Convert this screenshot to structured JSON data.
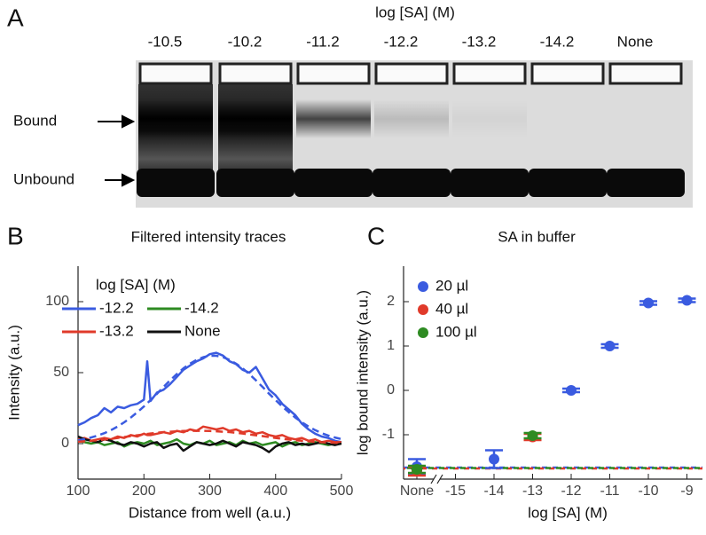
{
  "panel_a": {
    "label": "A",
    "title": "log [SA] (M)",
    "lanes": [
      "-10.5",
      "-10.2",
      "-11.2",
      "-12.2",
      "-13.2",
      "-14.2",
      "None"
    ],
    "bands": [
      "Bound",
      "Unbound"
    ]
  },
  "chart_data": [
    {
      "type": "line",
      "panel_label": "B",
      "title": "Filtered intensity traces",
      "x_label": "Distance from well (a.u.)",
      "y_label": "Intensity (a.u.)",
      "x": [
        100,
        110,
        120,
        130,
        140,
        150,
        160,
        170,
        180,
        190,
        200,
        205,
        210,
        220,
        230,
        240,
        250,
        260,
        270,
        280,
        290,
        300,
        310,
        320,
        330,
        340,
        350,
        360,
        370,
        380,
        390,
        400,
        410,
        420,
        430,
        440,
        450,
        460,
        470,
        480,
        490,
        500
      ],
      "series": [
        {
          "name": "-12.2",
          "color": "#3a5be0",
          "values": [
            13,
            15,
            18,
            20,
            25,
            22,
            26,
            25,
            27,
            28,
            31,
            58,
            30,
            36,
            38,
            42,
            47,
            52,
            55,
            58,
            60,
            63,
            64,
            62,
            58,
            56,
            52,
            50,
            54,
            46,
            38,
            34,
            28,
            24,
            20,
            14,
            10,
            7,
            5,
            4,
            2,
            1
          ]
        },
        {
          "name": "-14.2",
          "color": "#2e8b22",
          "values": [
            2,
            1,
            0,
            1,
            -1,
            0,
            1,
            -2,
            0,
            1,
            0,
            1,
            2,
            -1,
            0,
            1,
            3,
            0,
            -1,
            1,
            0,
            2,
            -1,
            0,
            1,
            -1,
            2,
            0,
            1,
            -1,
            0,
            1,
            -2,
            0,
            1,
            -1,
            0,
            1,
            0,
            -1,
            0,
            1
          ]
        },
        {
          "name": "-13.2",
          "color": "#e03a2a",
          "values": [
            3,
            4,
            2,
            3,
            4,
            3,
            5,
            4,
            6,
            5,
            7,
            6,
            6,
            7,
            8,
            7,
            9,
            8,
            10,
            9,
            12,
            11,
            10,
            11,
            9,
            10,
            8,
            9,
            7,
            8,
            6,
            5,
            6,
            4,
            3,
            4,
            2,
            3,
            1,
            2,
            1,
            1
          ]
        },
        {
          "name": "None",
          "color": "#111111",
          "values": [
            5,
            3,
            2,
            1,
            3,
            2,
            0,
            -1,
            1,
            0,
            -2,
            -1,
            0,
            1,
            -3,
            -1,
            0,
            -5,
            -2,
            1,
            0,
            -1,
            0,
            2,
            0,
            -2,
            1,
            0,
            -1,
            -3,
            -6,
            -2,
            0,
            1,
            -1,
            0,
            -1,
            0,
            1,
            0,
            -1,
            0
          ]
        }
      ],
      "fits": [
        {
          "color": "#3a5be0",
          "values": [
            2.3,
            3.2,
            4.3,
            5.7,
            7.4,
            9.5,
            12,
            15,
            18.3,
            22.1,
            26.2,
            28.4,
            30.6,
            35.2,
            40,
            44.6,
            49,
            53,
            56.3,
            59,
            60.9,
            61.9,
            61.9,
            60.9,
            59,
            56.3,
            53,
            49,
            44.6,
            40,
            35.2,
            30.6,
            26.2,
            22.1,
            18.3,
            15,
            12,
            9.5,
            7.4,
            5.7,
            4.3,
            3.2
          ]
        },
        {
          "color": "#e03a2a",
          "values": [
            1.3,
            1.6,
            2,
            2.4,
            2.9,
            3.4,
            4,
            4.6,
            5.3,
            5.9,
            6.5,
            6.8,
            7.1,
            7.6,
            8.1,
            8.4,
            8.7,
            8.9,
            9,
            9,
            9,
            8.9,
            8.7,
            8.4,
            8.1,
            7.6,
            7.1,
            6.5,
            5.9,
            5.3,
            4.6,
            4,
            3.4,
            2.9,
            2.4,
            2,
            1.6,
            1.3,
            1,
            0.8,
            0.6,
            0.5
          ]
        }
      ],
      "legend_title": "log [SA] (M)",
      "legend": "upper left",
      "xlim": [
        100,
        500
      ],
      "ylim": [
        -25,
        125
      ],
      "xticks": [
        100,
        200,
        300,
        400,
        500
      ],
      "yticks": [
        0,
        50,
        100
      ]
    },
    {
      "type": "scatter",
      "panel_label": "C",
      "title": "SA in buffer",
      "x_label": "log [SA] (M)",
      "y_label": "log bound intensity (a.u.)",
      "categories": [
        "None",
        "-15",
        "-14",
        "-13",
        "-12",
        "-11",
        "-10",
        "-9"
      ],
      "series": [
        {
          "name": "20 µl",
          "color": "#3a5be0",
          "values": [
            -1.72,
            null,
            -1.55,
            null,
            0,
            1.0,
            1.97,
            2.03
          ],
          "errors": [
            0.17,
            null,
            0.2,
            null,
            0.04,
            0.04,
            0.04,
            0.04
          ],
          "baseline": -1.74
        },
        {
          "name": "40 µl",
          "color": "#e03a2a",
          "values": [
            -1.82,
            null,
            null,
            -1.05,
            null,
            null,
            null,
            null
          ],
          "errors": [
            0.1,
            null,
            null,
            0.07,
            null,
            null,
            null,
            null
          ],
          "baseline": -1.76
        },
        {
          "name": "100 µl",
          "color": "#2e8b22",
          "values": [
            -1.78,
            null,
            null,
            -1.02,
            null,
            null,
            null,
            null
          ],
          "errors": [
            0.08,
            null,
            null,
            0.06,
            null,
            null,
            null,
            null
          ],
          "baseline": -1.75
        }
      ],
      "legend": "upper left",
      "ylim": [
        -2,
        2.8
      ],
      "yticks": [
        -1,
        0,
        1,
        2
      ]
    }
  ]
}
